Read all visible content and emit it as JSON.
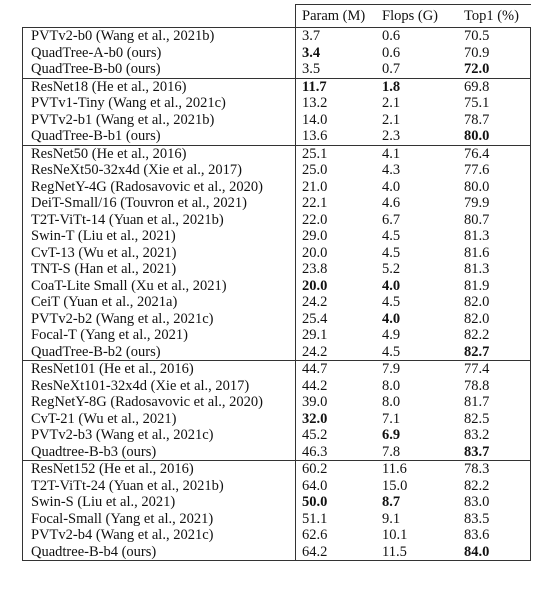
{
  "table": {
    "header": [
      "Param (M)",
      "Flops (G)",
      "Top1 (%)"
    ],
    "groups": [
      {
        "rows": [
          {
            "cells": [
              "PVTv2-b0 (Wang et al., 2021b)",
              "3.7",
              "0.6",
              "70.5"
            ]
          },
          {
            "cells": [
              "QuadTree-A-b0 (ours)",
              "3.4",
              "0.6",
              "70.9"
            ],
            "bold": [
              1
            ]
          },
          {
            "cells": [
              "QuadTree-B-b0 (ours)",
              "3.5",
              "0.7",
              "72.0"
            ],
            "bold": [
              3
            ]
          }
        ]
      },
      {
        "rows": [
          {
            "cells": [
              "ResNet18 (He et al., 2016)",
              "11.7",
              "1.8",
              "69.8"
            ],
            "bold": [
              1,
              2
            ]
          },
          {
            "cells": [
              "PVTv1-Tiny (Wang et al., 2021c)",
              "13.2",
              "2.1",
              "75.1"
            ]
          },
          {
            "cells": [
              "PVTv2-b1 (Wang et al., 2021b)",
              "14.0",
              "2.1",
              "78.7"
            ]
          },
          {
            "cells": [
              "QuadTree-B-b1 (ours)",
              "13.6",
              "2.3",
              "80.0"
            ],
            "bold": [
              3
            ]
          }
        ]
      },
      {
        "rows": [
          {
            "cells": [
              "ResNet50 (He et al., 2016)",
              "25.1",
              "4.1",
              "76.4"
            ]
          },
          {
            "cells": [
              "ResNeXt50-32x4d (Xie et al., 2017)",
              "25.0",
              "4.3",
              "77.6"
            ]
          },
          {
            "cells": [
              "RegNetY-4G (Radosavovic et al., 2020)",
              "21.0",
              "4.0",
              "80.0"
            ]
          },
          {
            "cells": [
              "DeiT-Small/16 (Touvron et al., 2021)",
              "22.1",
              "4.6",
              "79.9"
            ]
          },
          {
            "cells": [
              "T2T-ViTt-14 (Yuan et al., 2021b)",
              "22.0",
              "6.7",
              "80.7"
            ]
          },
          {
            "cells": [
              "Swin-T (Liu et al., 2021)",
              "29.0",
              "4.5",
              "81.3"
            ]
          },
          {
            "cells": [
              "CvT-13 (Wu et al., 2021)",
              "20.0",
              "4.5",
              "81.6"
            ]
          },
          {
            "cells": [
              "TNT-S (Han et al., 2021)",
              "23.8",
              "5.2",
              "81.3"
            ]
          },
          {
            "cells": [
              "CoaT-Lite Small (Xu et al., 2021)",
              "20.0",
              "4.0",
              "81.9"
            ],
            "bold": [
              1,
              2
            ]
          },
          {
            "cells": [
              "CeiT (Yuan et al., 2021a)",
              "24.2",
              "4.5",
              "82.0"
            ]
          },
          {
            "cells": [
              "PVTv2-b2 (Wang et al., 2021c)",
              "25.4",
              "4.0",
              "82.0"
            ],
            "bold": [
              2
            ]
          },
          {
            "cells": [
              "Focal-T (Yang et al., 2021)",
              "29.1",
              "4.9",
              "82.2"
            ]
          },
          {
            "cells": [
              "QuadTree-B-b2 (ours)",
              "24.2",
              "4.5",
              "82.7"
            ],
            "bold": [
              3
            ]
          }
        ]
      },
      {
        "rows": [
          {
            "cells": [
              "ResNet101 (He et al., 2016)",
              "44.7",
              "7.9",
              "77.4"
            ]
          },
          {
            "cells": [
              "ResNeXt101-32x4d (Xie et al., 2017)",
              "44.2",
              "8.0",
              "78.8"
            ]
          },
          {
            "cells": [
              "RegNetY-8G (Radosavovic et al., 2020)",
              "39.0",
              "8.0",
              "81.7"
            ]
          },
          {
            "cells": [
              "CvT-21 (Wu et al., 2021)",
              "32.0",
              "7.1",
              "82.5"
            ],
            "bold": [
              1
            ]
          },
          {
            "cells": [
              "PVTv2-b3 (Wang et al., 2021c)",
              "45.2",
              "6.9",
              "83.2"
            ],
            "bold": [
              2
            ]
          },
          {
            "cells": [
              "Quadtree-B-b3 (ours)",
              "46.3",
              "7.8",
              "83.7"
            ],
            "bold": [
              3
            ]
          }
        ]
      },
      {
        "rows": [
          {
            "cells": [
              "ResNet152 (He et al., 2016)",
              "60.2",
              "11.6",
              "78.3"
            ]
          },
          {
            "cells": [
              "T2T-ViTt-24 (Yuan et al., 2021b)",
              "64.0",
              "15.0",
              "82.2"
            ]
          },
          {
            "cells": [
              "Swin-S (Liu et al., 2021)",
              "50.0",
              "8.7",
              "83.0"
            ],
            "bold": [
              1,
              2
            ]
          },
          {
            "cells": [
              "Focal-Small (Yang et al., 2021)",
              "51.1",
              "9.1",
              "83.5"
            ]
          },
          {
            "cells": [
              "PVTv2-b4 (Wang et al., 2021c)",
              "62.6",
              "10.1",
              "83.6"
            ]
          },
          {
            "cells": [
              "Quadtree-B-b4 (ours)",
              "64.2",
              "11.5",
              "84.0"
            ],
            "bold": [
              3
            ]
          }
        ]
      }
    ]
  }
}
